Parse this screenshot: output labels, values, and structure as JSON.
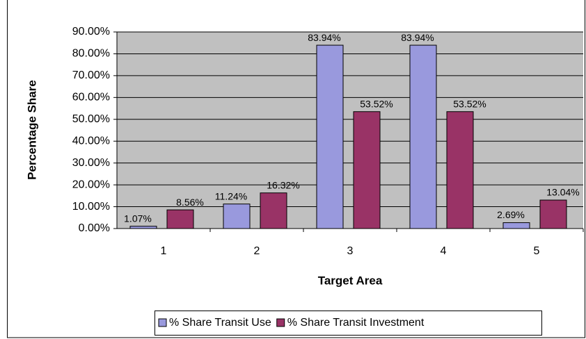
{
  "chart_data": {
    "type": "bar",
    "xlabel": "Target Area",
    "ylabel": "Percentage Share",
    "categories": [
      "1",
      "2",
      "3",
      "4",
      "5"
    ],
    "series": [
      {
        "name": "% Share Transit Use",
        "color": "#9999dd",
        "values": [
          1.07,
          11.24,
          83.94,
          83.94,
          2.69
        ],
        "value_labels": [
          "1.07%",
          "11.24%",
          "83.94%",
          "83.94%",
          "2.69%"
        ]
      },
      {
        "name": "% Share Transit Investment",
        "color": "#993366",
        "values": [
          8.56,
          16.32,
          53.52,
          53.52,
          13.04
        ],
        "value_labels": [
          "8.56%",
          "16.32%",
          "53.52%",
          "53.52%",
          "13.04%"
        ]
      }
    ],
    "ylim": [
      0,
      90
    ],
    "yticks": [
      {
        "value": 0,
        "label": "0.00%"
      },
      {
        "value": 10,
        "label": "10.00%"
      },
      {
        "value": 20,
        "label": "20.00%"
      },
      {
        "value": 30,
        "label": "30.00%"
      },
      {
        "value": 40,
        "label": "40.00%"
      },
      {
        "value": 50,
        "label": "50.00%"
      },
      {
        "value": 60,
        "label": "60.00%"
      },
      {
        "value": 70,
        "label": "70.00%"
      },
      {
        "value": 80,
        "label": "80.00%"
      },
      {
        "value": 90,
        "label": "90.00%"
      }
    ],
    "grid": true,
    "legend": "bottom"
  }
}
